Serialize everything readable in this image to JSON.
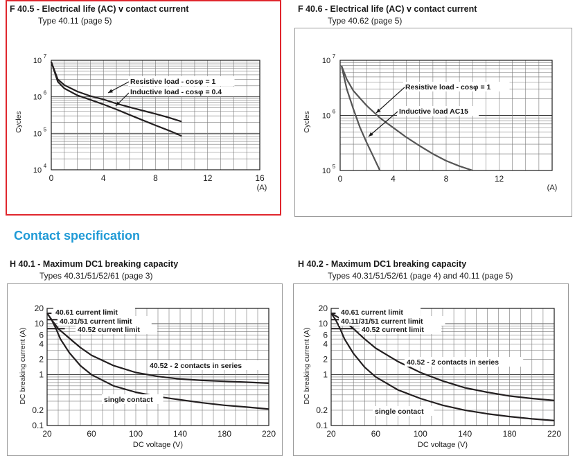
{
  "colors": {
    "highlight_border": "#e0262d",
    "frame_border": "#9a9a9a",
    "section_title": "#1f9ad6",
    "curve": "#231f20",
    "curve_grey": "#555555"
  },
  "section": {
    "title": "Contact specification"
  },
  "panels": [
    {
      "title": "F 40.5 - Electrical life (AC) v contact current",
      "subtitle": "Type 40.11 (page 5)"
    },
    {
      "title": "F 40.6 - Electrical life (AC) v contact current",
      "subtitle": "Type 40.62 (page 5)"
    },
    {
      "title": "H 40.1 - Maximum DC1 breaking capacity",
      "subtitle": "Types 40.31/51/52/61 (page 3)"
    },
    {
      "title": "H 40.2 - Maximum DC1 breaking capacity",
      "subtitle": "Types 40.31/51/52/61 (page 4) and 40.11 (page 5)"
    }
  ],
  "chart_data": [
    {
      "type": "line",
      "ylabel": "Cycles",
      "xlabel": "(A)",
      "xlim": [
        0,
        16
      ],
      "ylim": [
        10000,
        10000000
      ],
      "yscale": "log",
      "xticks": [
        "0",
        "4",
        "8",
        "12",
        "16"
      ],
      "yticks": [
        {
          "base": "10",
          "exp": "7"
        },
        {
          "base": "10",
          "exp": "6"
        },
        {
          "base": "10",
          "exp": "5"
        },
        {
          "base": "10",
          "exp": "4"
        }
      ],
      "series": [
        {
          "name": "Resistive load - cosφ = 1",
          "x": [
            0,
            0.5,
            1,
            2,
            3,
            4,
            5,
            6,
            7,
            8,
            9,
            10
          ],
          "y": [
            9000000,
            3000000,
            2100000,
            1400000,
            1050000,
            850000,
            650000,
            520000,
            420000,
            340000,
            270000,
            210000
          ]
        },
        {
          "name": "Inductive load - cosφ = 0.4",
          "x": [
            0,
            0.5,
            1,
            2,
            3,
            4,
            5,
            6,
            7,
            8,
            9,
            10
          ],
          "y": [
            9000000,
            2600000,
            1700000,
            1100000,
            830000,
            620000,
            450000,
            320000,
            230000,
            165000,
            120000,
            85000
          ]
        }
      ]
    },
    {
      "type": "line",
      "ylabel": "Cycles",
      "xlabel": "(A)",
      "xlim": [
        0,
        16
      ],
      "ylim": [
        100000,
        10000000
      ],
      "yscale": "log",
      "xticks": [
        "0",
        "4",
        "8",
        "12"
      ],
      "yticks": [
        {
          "base": "10",
          "exp": "7"
        },
        {
          "base": "10",
          "exp": "6"
        },
        {
          "base": "10",
          "exp": "5"
        }
      ],
      "series": [
        {
          "name": "Resistive load - cosφ = 1",
          "x": [
            0.1,
            0.5,
            1,
            2,
            3,
            4,
            5,
            6,
            7,
            8,
            9,
            10
          ],
          "y": [
            8000000,
            4500000,
            2800000,
            1500000,
            900000,
            600000,
            400000,
            280000,
            200000,
            150000,
            120000,
            100000
          ]
        },
        {
          "name": "Inductive load AC15",
          "x": [
            0.1,
            0.5,
            1,
            1.5,
            2,
            2.5,
            3
          ],
          "y": [
            8000000,
            3000000,
            1300000,
            600000,
            320000,
            180000,
            100000
          ]
        }
      ]
    },
    {
      "type": "line",
      "ylabel": "DC breaking current (A)",
      "xlabel": "DC voltage (V)",
      "xlim": [
        20,
        220
      ],
      "ylim": [
        0.1,
        20
      ],
      "yscale": "log",
      "xticks": [
        "20",
        "60",
        "100",
        "140",
        "180",
        "220"
      ],
      "yticks": [
        "20",
        "10",
        "6",
        "4",
        "2",
        "1",
        "0.2",
        "0.1"
      ],
      "limit_labels": [
        "40.61 current limit",
        "40.31/51 current limit",
        "40.52 current limit"
      ],
      "series": [
        {
          "name": "40.52 - 2 contacts in series",
          "x": [
            20,
            24,
            30,
            40,
            50,
            60,
            80,
            100,
            120,
            140,
            160,
            180,
            200,
            220
          ],
          "y": [
            16,
            12,
            8,
            5.2,
            3.4,
            2.4,
            1.5,
            1.1,
            0.92,
            0.82,
            0.77,
            0.74,
            0.71,
            0.68
          ]
        },
        {
          "name": "single contact",
          "x": [
            20,
            24,
            28,
            32,
            40,
            50,
            60,
            80,
            100,
            120,
            140,
            160,
            180,
            200,
            220
          ],
          "y": [
            16,
            12,
            8,
            5,
            2.7,
            1.5,
            1.0,
            0.6,
            0.45,
            0.37,
            0.32,
            0.28,
            0.25,
            0.23,
            0.21
          ]
        }
      ]
    },
    {
      "type": "line",
      "ylabel": "DC breaking current (A)",
      "xlabel": "DC voltage (V)",
      "xlim": [
        20,
        220
      ],
      "ylim": [
        0.1,
        20
      ],
      "yscale": "log",
      "xticks": [
        "20",
        "60",
        "100",
        "140",
        "180",
        "220"
      ],
      "yticks": [
        "20",
        "10",
        "6",
        "4",
        "2",
        "1",
        "0.2",
        "0.1"
      ],
      "limit_labels": [
        "40.61 current limit",
        "40.11/31/51 current limit",
        "40.52 current limit"
      ],
      "series": [
        {
          "name": "40.52 - 2 contacts in series",
          "x": [
            20,
            30,
            40,
            50,
            60,
            80,
            100,
            120,
            140,
            160,
            180,
            200,
            220
          ],
          "y": [
            16,
            12,
            8,
            5,
            3.3,
            1.8,
            1.1,
            0.75,
            0.55,
            0.45,
            0.38,
            0.34,
            0.31
          ]
        },
        {
          "name": "single contact",
          "x": [
            20,
            24,
            28,
            32,
            40,
            50,
            60,
            80,
            100,
            120,
            140,
            160,
            180,
            200,
            220
          ],
          "y": [
            16,
            12,
            8,
            5,
            2.6,
            1.4,
            0.9,
            0.5,
            0.34,
            0.25,
            0.2,
            0.17,
            0.15,
            0.135,
            0.125
          ]
        }
      ]
    }
  ]
}
